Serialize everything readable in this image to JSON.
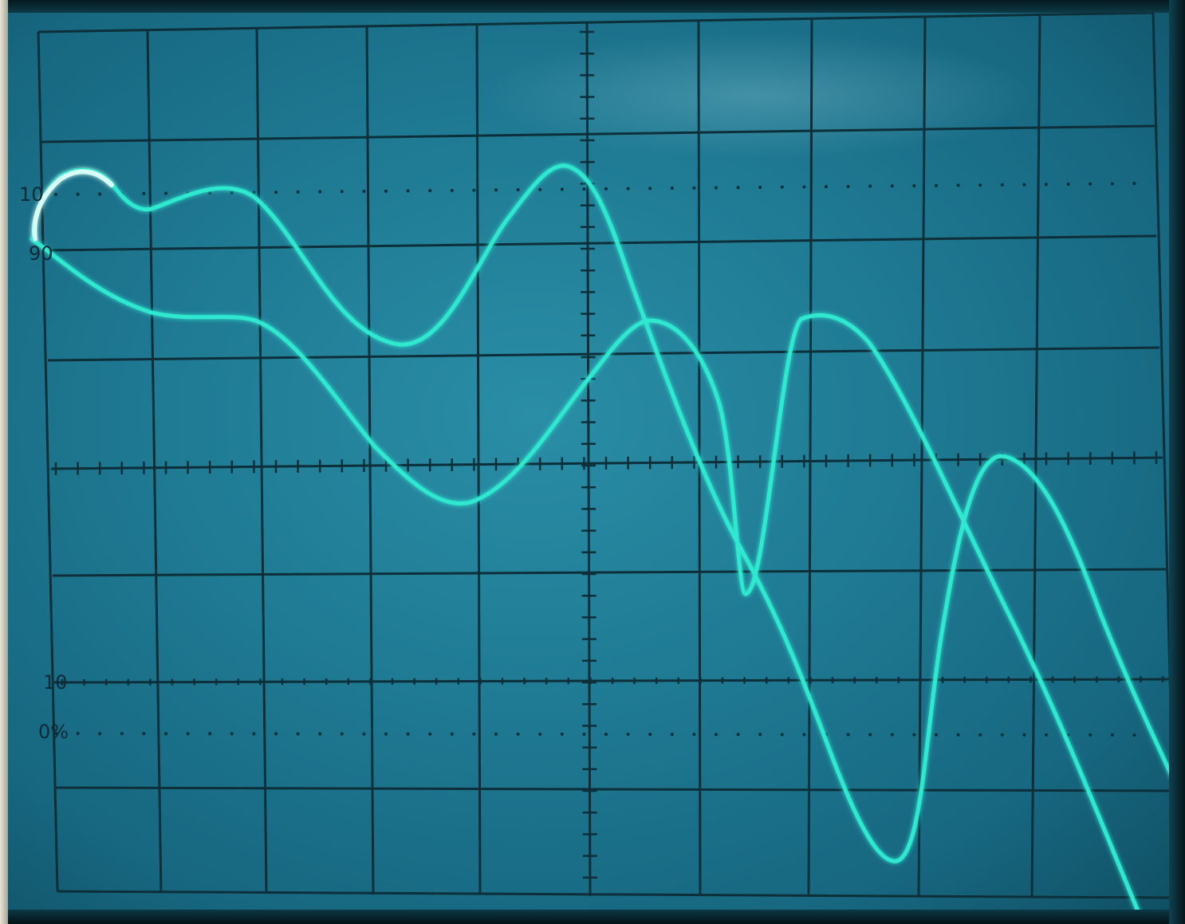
{
  "graticule": {
    "label_100": "10",
    "label_90": "90",
    "label_10": "10",
    "label_0": "0%"
  },
  "colors": {
    "trace": "#2fe8cf",
    "trace_glow": "#9ff7ea",
    "grid_line": "#0d2f3a",
    "screen": "#1f7a93"
  }
}
